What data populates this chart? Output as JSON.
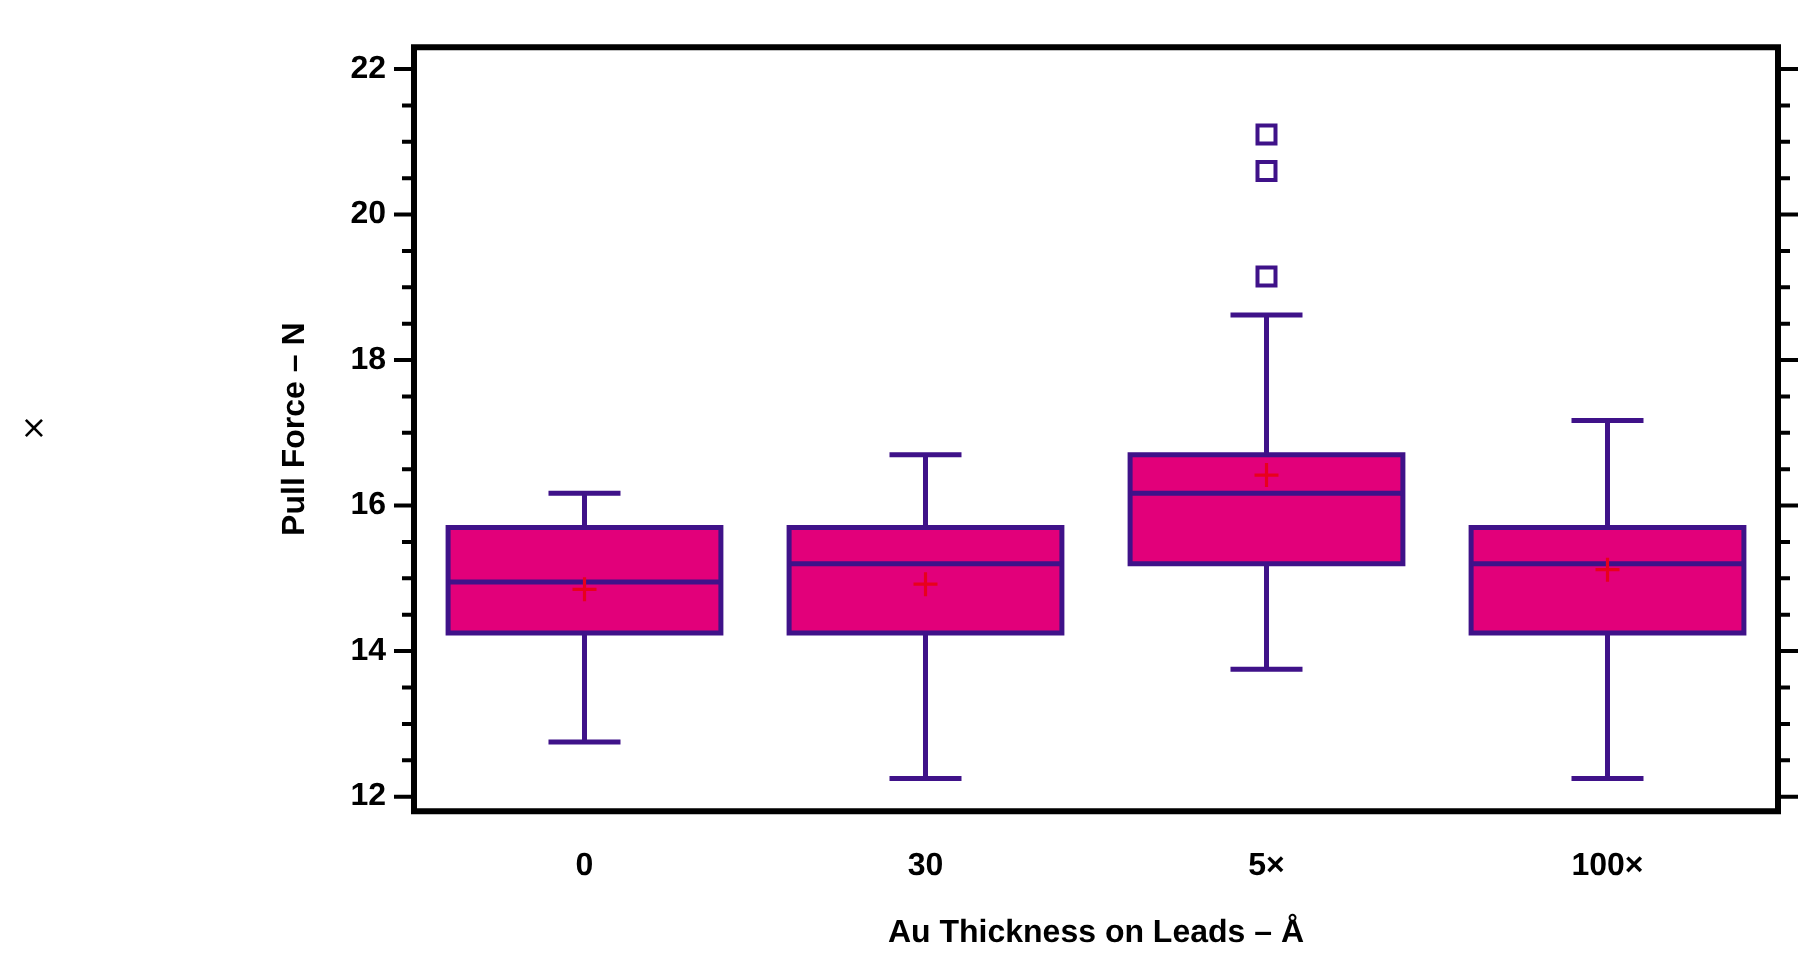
{
  "chart_data": {
    "type": "box",
    "xlabel": "Au Thickness on Leads – Å",
    "ylabel": "Pull Force – N",
    "categories": [
      "0",
      "30",
      "5×",
      "100×"
    ],
    "series": [
      {
        "color": "#e2007a",
        "boxes": [
          {
            "low": 12.75,
            "q1": 14.25,
            "median": 14.95,
            "q3": 15.7,
            "high": 16.17,
            "mean": 14.85
          },
          {
            "low": 12.25,
            "q1": 14.25,
            "median": 15.2,
            "q3": 15.7,
            "high": 16.7,
            "mean": 14.92
          },
          {
            "low": 13.75,
            "q1": 15.2,
            "median": 16.17,
            "q3": 16.7,
            "high": 18.62,
            "mean": 16.42,
            "outliers": [
              19.15,
              20.6,
              21.1
            ]
          },
          {
            "low": 12.25,
            "q1": 14.25,
            "median": 15.2,
            "q3": 15.7,
            "high": 17.17,
            "mean": 15.12
          }
        ]
      }
    ],
    "ylim": [
      11.8,
      22.3
    ],
    "yticks": [
      12,
      {
        "value": 12.5,
        "label": null
      },
      {
        "value": 13,
        "label": null
      },
      {
        "value": 13.5,
        "label": null
      },
      14,
      {
        "value": 14.5,
        "label": null
      },
      {
        "value": 15,
        "label": null
      },
      {
        "value": 15.5,
        "label": null
      },
      16,
      {
        "value": 16.5,
        "label": null
      },
      {
        "value": 17,
        "label": null
      },
      {
        "value": 17.5,
        "label": null
      },
      18,
      {
        "value": 18.5,
        "label": null
      },
      {
        "value": 19,
        "label": null
      },
      {
        "value": 19.5,
        "label": null
      },
      20,
      {
        "value": 20.5,
        "label": null
      },
      {
        "value": 21,
        "label": null
      },
      {
        "value": 21.5,
        "label": null
      },
      22
    ],
    "grid": false,
    "legend": false,
    "marker": "square",
    "annotations": [
      "×"
    ]
  }
}
